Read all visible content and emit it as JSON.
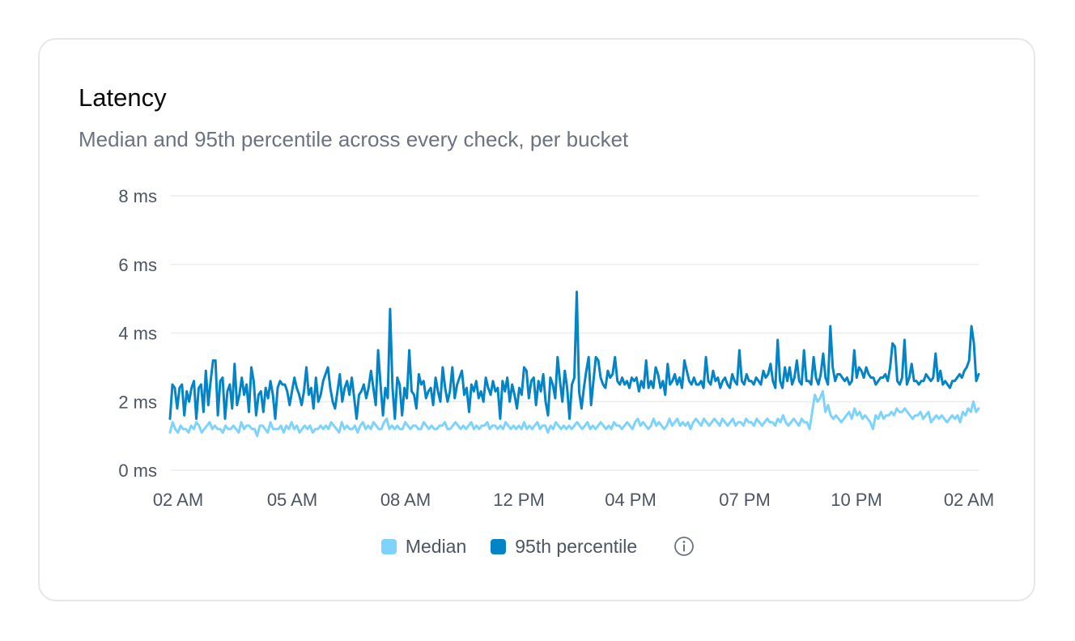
{
  "card": {
    "title": "Latency",
    "subtitle": "Median and 95th percentile across every check, per bucket"
  },
  "legend": {
    "items": [
      {
        "label": "Median",
        "color": "#7dd3fc"
      },
      {
        "label": "95th percentile",
        "color": "#0284c7"
      }
    ],
    "info_icon": "info-circle-icon"
  },
  "chart_data": {
    "type": "line",
    "title": "",
    "xlabel": "",
    "ylabel": "",
    "ylim": [
      0,
      8
    ],
    "y_ticks": [
      {
        "value": 0,
        "label": "0 ms"
      },
      {
        "value": 2,
        "label": "2 ms"
      },
      {
        "value": 4,
        "label": "4 ms"
      },
      {
        "value": 6,
        "label": "6 ms"
      },
      {
        "value": 8,
        "label": "8 ms"
      }
    ],
    "x_ticks": [
      "02 AM",
      "05 AM",
      "08 AM",
      "12 PM",
      "04 PM",
      "07 PM",
      "10 PM",
      "02 AM"
    ],
    "grid": true,
    "legend_position": "bottom",
    "series": [
      {
        "name": "95th percentile",
        "color": "#0284c7",
        "values": [
          1.5,
          2.5,
          2.4,
          1.8,
          2.4,
          2.5,
          1.6,
          2.3,
          2.0,
          2.4,
          2.6,
          1.5,
          2.4,
          2.5,
          1.7,
          2.9,
          1.9,
          2.6,
          3.2,
          3.2,
          1.6,
          2.6,
          2.7,
          1.5,
          2.3,
          2.5,
          1.8,
          3.1,
          1.9,
          2.2,
          2.7,
          2.2,
          2.5,
          1.7,
          3.0,
          2.6,
          1.6,
          2.2,
          2.3,
          1.7,
          2.4,
          2.1,
          2.6,
          2.2,
          1.5,
          2.4,
          2.6,
          2.5,
          2.5,
          2.3,
          1.9,
          2.3,
          2.7,
          2.4,
          2.2,
          1.9,
          2.3,
          3.0,
          2.2,
          2.4,
          1.8,
          2.7,
          2.0,
          2.2,
          2.6,
          2.8,
          3.0,
          2.4,
          2.0,
          1.8,
          2.3,
          2.8,
          2.0,
          2.4,
          2.6,
          2.2,
          2.7,
          2.1,
          1.5,
          2.2,
          2.3,
          2.5,
          2.1,
          2.4,
          2.9,
          2.4,
          1.9,
          3.5,
          2.5,
          1.6,
          2.4,
          2.1,
          4.7,
          2.4,
          1.5,
          2.7,
          2.5,
          1.6,
          2.4,
          2.1,
          3.5,
          2.3,
          2.2,
          1.8,
          2.8,
          2.5,
          2.6,
          2.1,
          2.3,
          2.4,
          1.9,
          2.7,
          2.3,
          2.0,
          3.0,
          2.4,
          2.0,
          2.3,
          3.0,
          2.1,
          2.5,
          2.7,
          2.9,
          2.2,
          2.4,
          1.7,
          2.5,
          2.3,
          2.6,
          2.1,
          2.3,
          2.0,
          2.7,
          2.4,
          2.2,
          2.6,
          2.3,
          2.4,
          1.5,
          2.6,
          2.3,
          2.7,
          2.0,
          2.5,
          2.2,
          1.8,
          2.4,
          2.2,
          3.0,
          2.9,
          2.1,
          2.6,
          2.7,
          1.9,
          2.6,
          2.3,
          2.8,
          2.0,
          1.6,
          2.7,
          2.5,
          2.1,
          3.3,
          2.6,
          2.0,
          2.9,
          2.4,
          1.5,
          2.5,
          2.7,
          5.2,
          2.3,
          1.8,
          2.4,
          2.9,
          3.3,
          1.9,
          2.6,
          3.3,
          3.2,
          2.7,
          2.5,
          2.4,
          2.9,
          2.7,
          2.8,
          3.3,
          2.6,
          2.5,
          2.7,
          2.5,
          2.6,
          2.4,
          2.7,
          2.6,
          2.7,
          2.3,
          2.6,
          2.4,
          3.2,
          2.4,
          2.6,
          2.4,
          3.0,
          2.8,
          2.4,
          2.6,
          2.2,
          3.1,
          2.5,
          2.6,
          2.8,
          2.5,
          2.7,
          2.4,
          3.2,
          2.9,
          2.6,
          2.5,
          2.7,
          2.5,
          2.5,
          2.6,
          2.4,
          3.3,
          2.6,
          2.5,
          2.9,
          2.6,
          2.7,
          2.4,
          2.6,
          2.7,
          2.5,
          2.4,
          2.8,
          2.6,
          2.5,
          3.5,
          2.6,
          2.5,
          2.8,
          2.6,
          2.6,
          2.5,
          2.7,
          2.6,
          2.5,
          2.9,
          2.7,
          2.8,
          3.1,
          2.6,
          2.4,
          3.8,
          2.6,
          2.4,
          3.0,
          2.6,
          3.0,
          2.5,
          2.7,
          3.2,
          2.6,
          2.5,
          3.5,
          2.6,
          2.6,
          2.5,
          3.3,
          2.7,
          2.5,
          2.8,
          3.4,
          2.7,
          2.5,
          4.2,
          3.0,
          2.6,
          2.8,
          2.8,
          2.7,
          2.6,
          2.7,
          2.5,
          2.6,
          3.5,
          2.7,
          3.0,
          2.9,
          2.7,
          3.0,
          2.8,
          2.7,
          2.7,
          2.5,
          2.6,
          2.7,
          2.7,
          2.8,
          2.6,
          3.0,
          3.7,
          3.6,
          2.6,
          2.5,
          2.7,
          3.8,
          2.5,
          2.7,
          3.1,
          2.6,
          2.6,
          2.5,
          2.6,
          2.6,
          2.8,
          2.7,
          2.6,
          2.7,
          3.4,
          2.6,
          2.9,
          2.5,
          2.6,
          2.5,
          2.4,
          2.6,
          2.6,
          2.7,
          2.8,
          2.7,
          2.9,
          3.0,
          3.2,
          4.2,
          3.7,
          2.6,
          2.8
        ]
      },
      {
        "name": "Median",
        "color": "#7dd3fc",
        "values": [
          1.1,
          1.4,
          1.2,
          1.1,
          1.3,
          1.2,
          1.2,
          1.1,
          1.3,
          1.2,
          1.4,
          1.3,
          1.1,
          1.2,
          1.3,
          1.4,
          1.2,
          1.3,
          1.2,
          1.2,
          1.1,
          1.3,
          1.2,
          1.2,
          1.3,
          1.2,
          1.1,
          1.4,
          1.2,
          1.3,
          1.3,
          1.2,
          1.2,
          1.0,
          1.3,
          1.3,
          1.2,
          1.1,
          1.4,
          1.2,
          1.2,
          1.2,
          1.3,
          1.1,
          1.3,
          1.2,
          1.4,
          1.2,
          1.3,
          1.1,
          1.2,
          1.3,
          1.2,
          1.3,
          1.1,
          1.2,
          1.2,
          1.3,
          1.2,
          1.3,
          1.2,
          1.4,
          1.3,
          1.2,
          1.1,
          1.4,
          1.2,
          1.3,
          1.2,
          1.2,
          1.3,
          1.1,
          1.3,
          1.4,
          1.2,
          1.3,
          1.2,
          1.4,
          1.3,
          1.2,
          1.2,
          1.4,
          1.5,
          1.2,
          1.3,
          1.2,
          1.3,
          1.2,
          1.2,
          1.4,
          1.3,
          1.2,
          1.3,
          1.3,
          1.2,
          1.2,
          1.4,
          1.3,
          1.2,
          1.3,
          1.2,
          1.2,
          1.3,
          1.3,
          1.4,
          1.2,
          1.2,
          1.3,
          1.4,
          1.3,
          1.2,
          1.3,
          1.2,
          1.3,
          1.4,
          1.2,
          1.3,
          1.2,
          1.3,
          1.3,
          1.4,
          1.2,
          1.3,
          1.3,
          1.2,
          1.3,
          1.2,
          1.4,
          1.3,
          1.2,
          1.3,
          1.2,
          1.3,
          1.2,
          1.4,
          1.2,
          1.3,
          1.2,
          1.3,
          1.4,
          1.2,
          1.3,
          1.3,
          1.1,
          1.3,
          1.2,
          1.4,
          1.3,
          1.2,
          1.3,
          1.2,
          1.3,
          1.2,
          1.3,
          1.4,
          1.3,
          1.2,
          1.3,
          1.4,
          1.2,
          1.3,
          1.2,
          1.3,
          1.4,
          1.3,
          1.2,
          1.3,
          1.2,
          1.4,
          1.3,
          1.3,
          1.2,
          1.3,
          1.4,
          1.3,
          1.2,
          1.4,
          1.5,
          1.3,
          1.4,
          1.3,
          1.2,
          1.3,
          1.5,
          1.3,
          1.4,
          1.3,
          1.2,
          1.3,
          1.5,
          1.3,
          1.4,
          1.5,
          1.3,
          1.4,
          1.3,
          1.4,
          1.2,
          1.4,
          1.5,
          1.4,
          1.3,
          1.5,
          1.4,
          1.3,
          1.4,
          1.5,
          1.4,
          1.3,
          1.5,
          1.4,
          1.3,
          1.4,
          1.5,
          1.3,
          1.4,
          1.4,
          1.3,
          1.5,
          1.4,
          1.4,
          1.3,
          1.5,
          1.4,
          1.3,
          1.4,
          1.5,
          1.4,
          1.4,
          1.3,
          1.5,
          1.4,
          1.6,
          1.4,
          1.3,
          1.4,
          1.5,
          1.4,
          1.3,
          1.5,
          1.4,
          1.4,
          1.2,
          1.7,
          2.2,
          2.0,
          2.1,
          2.3,
          1.7,
          1.9,
          1.6,
          1.5,
          1.6,
          1.5,
          1.4,
          1.5,
          1.6,
          1.7,
          1.5,
          1.8,
          1.6,
          1.7,
          1.5,
          1.6,
          1.5,
          1.4,
          1.2,
          1.6,
          1.5,
          1.7,
          1.5,
          1.6,
          1.6,
          1.7,
          1.6,
          1.8,
          1.7,
          1.7,
          1.8,
          1.7,
          1.6,
          1.5,
          1.6,
          1.6,
          1.7,
          1.5,
          1.6,
          1.7,
          1.4,
          1.5,
          1.6,
          1.5,
          1.6,
          1.5,
          1.4,
          1.5,
          1.6,
          1.5,
          1.6,
          1.4,
          1.7,
          1.6,
          1.8,
          1.7,
          2.0,
          1.7,
          1.8
        ]
      }
    ]
  }
}
